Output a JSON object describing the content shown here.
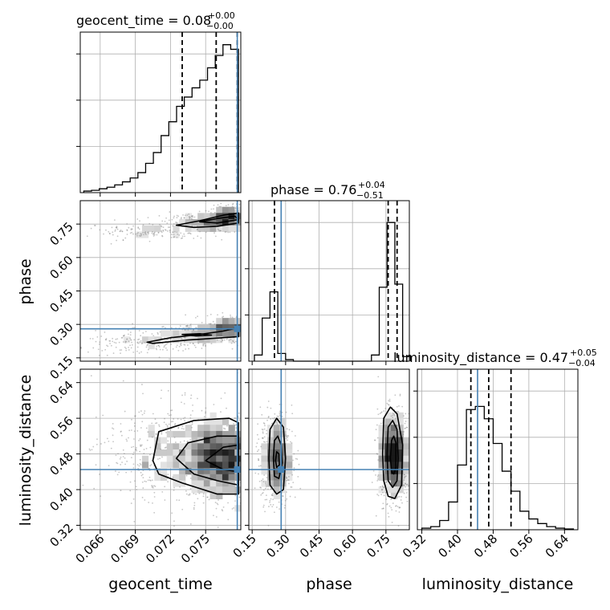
{
  "chart_data": {
    "type": "corner",
    "colors": {
      "truth": "#4682b4",
      "hist": "#000000",
      "grid": "#b0b0b0",
      "points": "#808080"
    },
    "params": [
      "geocent_time",
      "phase",
      "luminosity_distance"
    ],
    "truths": {
      "geocent_time": 0.0777,
      "phase": 0.28,
      "luminosity_distance": 0.445
    },
    "quantiles": {
      "geocent_time": [
        0.073,
        0.0759,
        0.0777
      ],
      "phase": [
        0.25,
        0.76,
        0.8
      ],
      "luminosity_distance": [
        0.43,
        0.47,
        0.52
      ]
    },
    "titles": {
      "geocent_time": {
        "label": "geocent_time = 0.08",
        "plus": "+0.00",
        "minus": "−0.00"
      },
      "phase": {
        "label": "phase = 0.76",
        "plus": "+0.04",
        "minus": "−0.51"
      },
      "luminosity_distance": {
        "label": "luminosity_distance = 0.47",
        "plus": "+0.05",
        "minus": "−0.04"
      }
    },
    "axes": {
      "geocent_time": {
        "xlabel": "geocent_time",
        "range": [
          0.0643,
          0.078
        ],
        "ticks": [
          0.066,
          0.069,
          0.072,
          0.075
        ],
        "tick_labels": [
          "0.066",
          "0.069",
          "0.072",
          "0.075"
        ]
      },
      "phase": {
        "xlabel": "phase",
        "ylabel": "phase",
        "range": [
          0.135,
          0.855
        ],
        "ticks": [
          0.15,
          0.3,
          0.45,
          0.6,
          0.75
        ],
        "tick_labels": [
          "0.15",
          "0.30",
          "0.45",
          "0.60",
          "0.75"
        ]
      },
      "luminosity_distance": {
        "xlabel": "luminosity_distance",
        "ylabel": "luminosity_distance",
        "range": [
          0.31,
          0.67
        ],
        "ticks": [
          0.32,
          0.4,
          0.48,
          0.56,
          0.64
        ],
        "tick_labels": [
          "0.32",
          "0.40",
          "0.48",
          "0.56",
          "0.64"
        ]
      }
    },
    "hist_geocent_time": {
      "edges": [
        0.0646,
        0.06526,
        0.06592,
        0.06658,
        0.06724,
        0.0679,
        0.06856,
        0.06922,
        0.06988,
        0.07054,
        0.0712,
        0.07186,
        0.07252,
        0.07318,
        0.07384,
        0.0745,
        0.07516,
        0.07582,
        0.07648,
        0.07714,
        0.0778
      ],
      "counts": [
        0.01,
        0.015,
        0.025,
        0.035,
        0.05,
        0.07,
        0.095,
        0.13,
        0.19,
        0.26,
        0.37,
        0.46,
        0.56,
        0.62,
        0.68,
        0.73,
        0.81,
        0.89,
        0.96,
        0.93
      ]
    },
    "hist_phase": {
      "edges": [
        0.16,
        0.195,
        0.23,
        0.265,
        0.3,
        0.335,
        0.37,
        0.405,
        0.44,
        0.475,
        0.51,
        0.545,
        0.58,
        0.615,
        0.65,
        0.685,
        0.72,
        0.755,
        0.79,
        0.825,
        0.86
      ],
      "counts": [
        0.04,
        0.28,
        0.45,
        0.05,
        0.01,
        0,
        0,
        0,
        0,
        0,
        0,
        0,
        0,
        0,
        0,
        0.04,
        0.48,
        0.9,
        0.5,
        0.03
      ]
    },
    "hist_luminosity_distance": {
      "edges": [
        0.32,
        0.34,
        0.36,
        0.38,
        0.4,
        0.42,
        0.44,
        0.46,
        0.48,
        0.5,
        0.52,
        0.54,
        0.56,
        0.58,
        0.6,
        0.62,
        0.64,
        0.66
      ],
      "counts": [
        0.01,
        0.02,
        0.06,
        0.18,
        0.42,
        0.78,
        0.8,
        0.72,
        0.56,
        0.38,
        0.25,
        0.12,
        0.07,
        0.04,
        0.02,
        0.01,
        0.005
      ]
    },
    "density_blobs": {
      "geocent_time_phase": [
        {
          "cx": 0.077,
          "cy": 0.78,
          "sx": 0.0011,
          "sy": 0.025,
          "w": 1.0,
          "n": 650
        },
        {
          "cx": 0.0748,
          "cy": 0.755,
          "sx": 0.0018,
          "sy": 0.022,
          "w": 0.55,
          "n": 450
        },
        {
          "cx": 0.0705,
          "cy": 0.72,
          "sx": 0.0028,
          "sy": 0.02,
          "w": 0.25,
          "n": 350
        },
        {
          "cx": 0.077,
          "cy": 0.29,
          "sx": 0.0011,
          "sy": 0.025,
          "w": 1.0,
          "n": 550
        },
        {
          "cx": 0.0745,
          "cy": 0.26,
          "sx": 0.0018,
          "sy": 0.022,
          "w": 0.55,
          "n": 450
        },
        {
          "cx": 0.07,
          "cy": 0.22,
          "sx": 0.003,
          "sy": 0.025,
          "w": 0.25,
          "n": 450
        }
      ],
      "geocent_time_luminosity_distance": [
        {
          "cx": 0.0766,
          "cy": 0.465,
          "sx": 0.0016,
          "sy": 0.045,
          "w": 1.0,
          "n": 1500
        },
        {
          "cx": 0.0735,
          "cy": 0.48,
          "sx": 0.0035,
          "sy": 0.055,
          "w": 0.6,
          "n": 1600
        }
      ],
      "phase_luminosity_distance": [
        {
          "cx": 0.26,
          "cy": 0.47,
          "sx": 0.035,
          "sy": 0.05,
          "w": 0.8,
          "n": 1300
        },
        {
          "cx": 0.785,
          "cy": 0.475,
          "sx": 0.035,
          "sy": 0.05,
          "w": 1.0,
          "n": 1900
        }
      ]
    },
    "contours": {
      "geocent_time_phase": [
        [
          [
            0.0725,
            0.745
          ],
          [
            0.0745,
            0.765
          ],
          [
            0.0765,
            0.79
          ],
          [
            0.0778,
            0.8
          ],
          [
            0.0778,
            0.755
          ],
          [
            0.076,
            0.74
          ],
          [
            0.074,
            0.735
          ],
          [
            0.0725,
            0.745
          ]
        ],
        [
          [
            0.0745,
            0.76
          ],
          [
            0.076,
            0.775
          ],
          [
            0.0775,
            0.785
          ],
          [
            0.0778,
            0.77
          ],
          [
            0.076,
            0.755
          ],
          [
            0.0745,
            0.76
          ]
        ],
        [
          [
            0.072,
            0.24
          ],
          [
            0.0745,
            0.255
          ],
          [
            0.0765,
            0.27
          ],
          [
            0.0778,
            0.285
          ],
          [
            0.0778,
            0.245
          ],
          [
            0.075,
            0.235
          ],
          [
            0.0735,
            0.23
          ],
          [
            0.0705,
            0.215
          ],
          [
            0.07,
            0.22
          ],
          [
            0.072,
            0.24
          ]
        ],
        [
          [
            0.073,
            0.255
          ],
          [
            0.0745,
            0.258
          ],
          [
            0.0755,
            0.252
          ],
          [
            0.0742,
            0.248
          ],
          [
            0.073,
            0.255
          ]
        ]
      ],
      "geocent_time_luminosity_distance": [
        [
          [
            0.0705,
            0.465
          ],
          [
            0.071,
            0.53
          ],
          [
            0.074,
            0.555
          ],
          [
            0.077,
            0.56
          ],
          [
            0.0778,
            0.55
          ],
          [
            0.0778,
            0.39
          ],
          [
            0.076,
            0.39
          ],
          [
            0.073,
            0.415
          ],
          [
            0.071,
            0.435
          ],
          [
            0.0705,
            0.465
          ]
        ],
        [
          [
            0.0725,
            0.47
          ],
          [
            0.0735,
            0.505
          ],
          [
            0.076,
            0.52
          ],
          [
            0.0778,
            0.52
          ],
          [
            0.0778,
            0.41
          ],
          [
            0.076,
            0.42
          ],
          [
            0.074,
            0.435
          ],
          [
            0.0725,
            0.47
          ]
        ],
        [
          [
            0.075,
            0.465
          ],
          [
            0.0765,
            0.495
          ],
          [
            0.0778,
            0.5
          ],
          [
            0.0778,
            0.44
          ],
          [
            0.0765,
            0.445
          ],
          [
            0.075,
            0.465
          ]
        ]
      ],
      "phase_luminosity_distance": [
        [
          [
            0.225,
            0.47
          ],
          [
            0.23,
            0.535
          ],
          [
            0.26,
            0.56
          ],
          [
            0.29,
            0.54
          ],
          [
            0.3,
            0.47
          ],
          [
            0.29,
            0.4
          ],
          [
            0.26,
            0.39
          ],
          [
            0.23,
            0.41
          ],
          [
            0.225,
            0.47
          ]
        ],
        [
          [
            0.245,
            0.47
          ],
          [
            0.25,
            0.51
          ],
          [
            0.265,
            0.52
          ],
          [
            0.28,
            0.5
          ],
          [
            0.285,
            0.46
          ],
          [
            0.27,
            0.425
          ],
          [
            0.25,
            0.43
          ],
          [
            0.245,
            0.47
          ]
        ],
        [
          [
            0.255,
            0.465
          ],
          [
            0.26,
            0.485
          ],
          [
            0.27,
            0.48
          ],
          [
            0.272,
            0.455
          ],
          [
            0.26,
            0.45
          ],
          [
            0.255,
            0.465
          ]
        ],
        [
          [
            0.735,
            0.48
          ],
          [
            0.74,
            0.56
          ],
          [
            0.77,
            0.585
          ],
          [
            0.8,
            0.57
          ],
          [
            0.825,
            0.5
          ],
          [
            0.82,
            0.41
          ],
          [
            0.79,
            0.38
          ],
          [
            0.76,
            0.385
          ],
          [
            0.74,
            0.42
          ],
          [
            0.735,
            0.48
          ]
        ],
        [
          [
            0.755,
            0.48
          ],
          [
            0.76,
            0.54
          ],
          [
            0.78,
            0.555
          ],
          [
            0.8,
            0.535
          ],
          [
            0.805,
            0.47
          ],
          [
            0.8,
            0.42
          ],
          [
            0.78,
            0.405
          ],
          [
            0.76,
            0.42
          ],
          [
            0.755,
            0.48
          ]
        ],
        [
          [
            0.77,
            0.47
          ],
          [
            0.775,
            0.51
          ],
          [
            0.785,
            0.52
          ],
          [
            0.795,
            0.505
          ],
          [
            0.795,
            0.45
          ],
          [
            0.785,
            0.435
          ],
          [
            0.775,
            0.44
          ],
          [
            0.77,
            0.47
          ]
        ]
      ]
    }
  }
}
